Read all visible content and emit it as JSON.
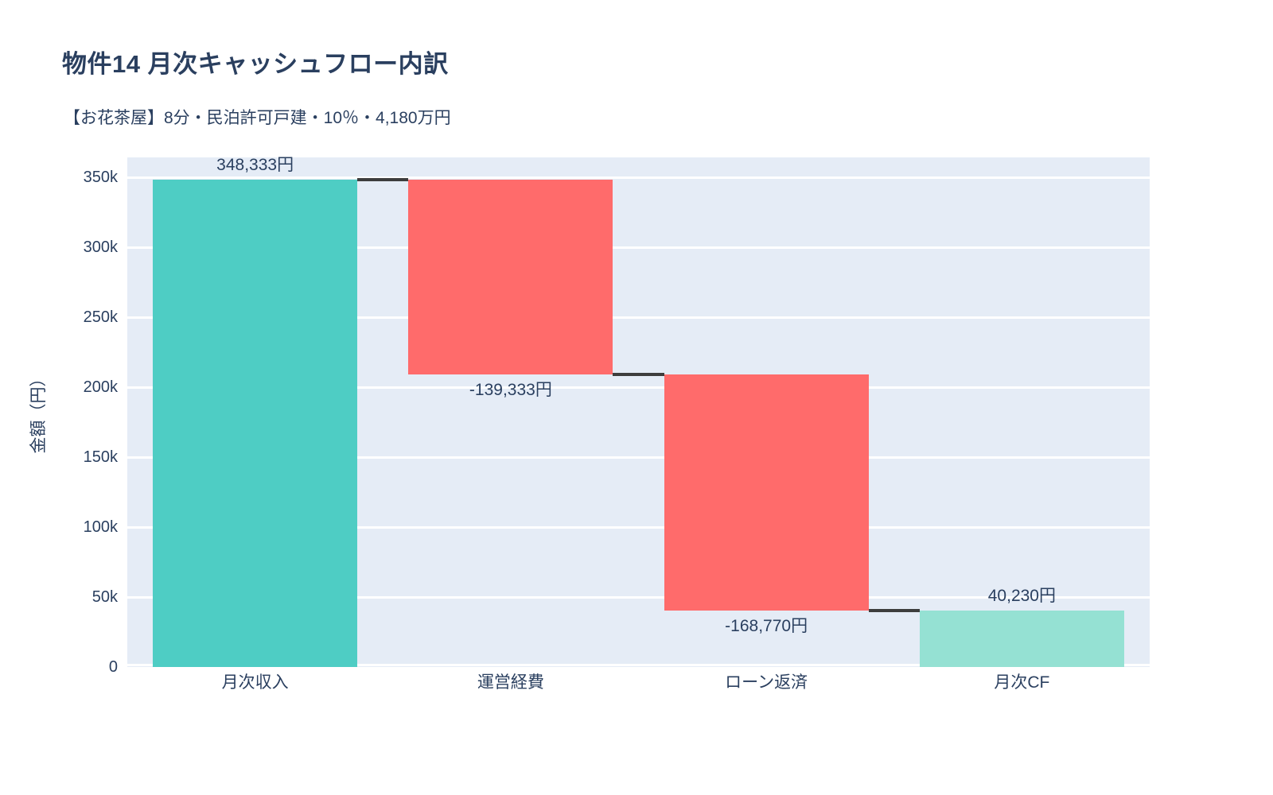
{
  "page": {
    "background": "#ffffff"
  },
  "chart_data": {
    "type": "bar",
    "variant": "waterfall",
    "title": "物件14 月次キャッシュフロー内訳",
    "subtitle": "【お花茶屋】8分・民泊許可戸建・10％・4,180万円",
    "categories": [
      "月次収入",
      "運営経費",
      "ローン返済",
      "月次CF"
    ],
    "values": [
      348333,
      -139333,
      -168770,
      40230
    ],
    "measures": [
      "relative",
      "relative",
      "relative",
      "total"
    ],
    "cumulative": [
      348333,
      209000,
      40230,
      40230
    ],
    "bar_labels": [
      "348,333円",
      "-139,333円",
      "-168,770円",
      "40,230円"
    ],
    "xlabel": "",
    "ylabel": "金額（円）",
    "ylim": [
      0,
      364000
    ],
    "ytick_values": [
      0,
      50000,
      100000,
      150000,
      200000,
      250000,
      300000,
      350000
    ],
    "ytick_labels": [
      "0",
      "50k",
      "100k",
      "150k",
      "200k",
      "250k",
      "300k",
      "350k"
    ],
    "grid": true,
    "legend": false,
    "colors": {
      "increasing": "#4ECDC4",
      "decreasing": "#FF6B6B",
      "total": "#95E1D3",
      "connector": "#3d3d3d",
      "plot_background": "#E5ECF6",
      "gridline": "#FFFFFF",
      "text": "#2a3f5f"
    }
  }
}
